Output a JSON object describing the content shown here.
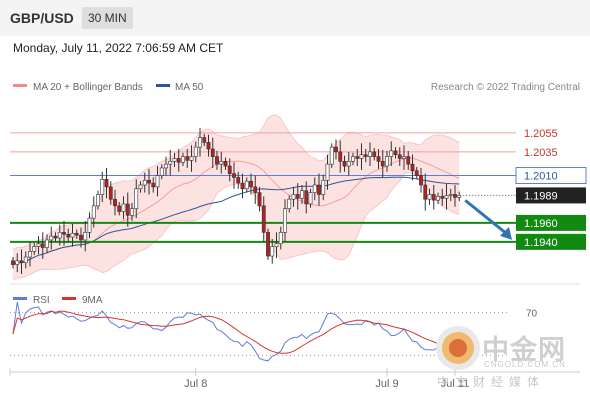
{
  "header": {
    "symbol": "GBP/USD",
    "timeframe": "30 MIN"
  },
  "date_line": "Monday, July 11, 2022 7:06:59 AM CET",
  "legend": {
    "items": [
      {
        "label": "MA 20 + Bollinger Bands",
        "color": "#f08a8a"
      },
      {
        "label": "MA 50",
        "color": "#2f5597"
      }
    ],
    "credit": "Research © 2022 Trading Central"
  },
  "indicator_legend": {
    "items": [
      {
        "label": "RSI",
        "color": "#5b7fd6"
      },
      {
        "label": "9MA",
        "color": "#d9332c"
      }
    ]
  },
  "watermark": {
    "brand": "中金网",
    "url": "CNGOLD.COM.CN",
    "subtitle": "中文财经媒体"
  },
  "colors": {
    "bull": "#ffffff",
    "bear": "#b52020",
    "support": "#128a12",
    "pivot": "#5b7fd6",
    "resistance": "#f2a0a0",
    "arrow": "#2e75b6"
  },
  "chart_data": [
    {
      "type": "candlestick",
      "y_range": [
        1.1905,
        1.2095
      ],
      "x_ticks": [
        {
          "label": "Jul 8",
          "index": 43
        },
        {
          "label": "Jul 9",
          "index": 88
        },
        {
          "label": "Jul 11",
          "index": 104
        }
      ],
      "levels": [
        {
          "value": 1.2055,
          "label": "1.2055",
          "kind": "resistance"
        },
        {
          "value": 1.2035,
          "label": "1.2035",
          "kind": "resistance"
        },
        {
          "value": 1.201,
          "label": "1.2010",
          "kind": "pivot"
        },
        {
          "value": 1.1989,
          "label": "1.1989",
          "kind": "last"
        },
        {
          "value": 1.196,
          "label": "1.1960",
          "kind": "support"
        },
        {
          "value": 1.194,
          "label": "1.1940",
          "kind": "support"
        }
      ],
      "forecast_arrow": {
        "from": 1.1988,
        "to": 1.194
      },
      "closes": [
        1.1916,
        1.192,
        1.1918,
        1.1924,
        1.193,
        1.1935,
        1.1938,
        1.1934,
        1.1942,
        1.1946,
        1.1944,
        1.195,
        1.1948,
        1.1945,
        1.1949,
        1.1947,
        1.1942,
        1.195,
        1.1965,
        1.1978,
        1.199,
        1.2006,
        1.1998,
        1.1985,
        1.1978,
        1.1972,
        1.198,
        1.1968,
        1.1975,
        1.1996,
        1.2,
        1.2005,
        1.2002,
        1.1998,
        1.201,
        1.2018,
        1.2022,
        1.2025,
        1.2028,
        1.2024,
        1.203,
        1.2026,
        1.203,
        1.204,
        1.205,
        1.2045,
        1.2038,
        1.203,
        1.2022,
        1.2025,
        1.202,
        1.2012,
        1.2008,
        1.2002,
        1.1996,
        1.2004,
        1.1998,
        1.1992,
        1.1978,
        1.195,
        1.1925,
        1.1935,
        1.1938,
        1.195,
        1.1975,
        1.1985,
        1.199,
        1.1986,
        1.1994,
        1.198,
        1.1992,
        1.2,
        1.199,
        1.2005,
        1.2022,
        1.204,
        1.2035,
        1.2025,
        1.202,
        1.2025,
        1.203,
        1.2028,
        1.2032,
        1.203,
        1.2035,
        1.203,
        1.2025,
        1.202,
        1.203,
        1.2036,
        1.2032,
        1.2028,
        1.203,
        1.2022,
        1.2015,
        1.201,
        1.2,
        1.1985,
        1.199,
        1.1984,
        1.1988,
        1.1986,
        1.1989,
        1.199,
        1.1987,
        1.1989
      ]
    },
    {
      "type": "line",
      "name": "RSI",
      "y_range": [
        20,
        80
      ],
      "levels": [
        {
          "value": 70,
          "label": "70"
        },
        {
          "value": 30,
          "label": ""
        }
      ]
    }
  ]
}
